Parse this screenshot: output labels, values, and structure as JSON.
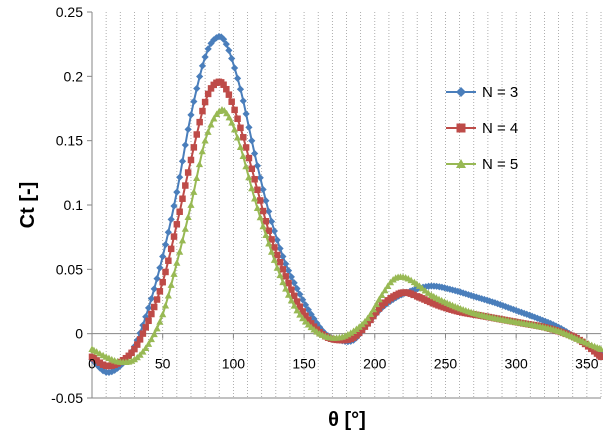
{
  "chart_data": {
    "type": "line",
    "title": "",
    "xlabel": "θ [°]",
    "ylabel": "Ct [-]",
    "xlim": [
      0,
      360
    ],
    "ylim": [
      -0.05,
      0.25
    ],
    "x_ticks": [
      0,
      50,
      100,
      150,
      200,
      250,
      300,
      350
    ],
    "y_ticks": [
      -0.05,
      0,
      0.05,
      0.1,
      0.15,
      0.2,
      0.25
    ],
    "y_tick_labels": [
      "-0.05",
      "0",
      "0.05",
      "0.1",
      "0.15",
      "0.2",
      "0.25"
    ],
    "grid": "vertical-dotted",
    "legend_position": "right",
    "series": [
      {
        "name": "N = 3",
        "color": "#4a7ebb",
        "marker": "diamond",
        "points": [
          [
            0,
            -0.02
          ],
          [
            10,
            -0.03
          ],
          [
            20,
            -0.025
          ],
          [
            30,
            -0.01
          ],
          [
            40,
            0.02
          ],
          [
            50,
            0.06
          ],
          [
            60,
            0.11
          ],
          [
            70,
            0.17
          ],
          [
            80,
            0.215
          ],
          [
            88,
            0.23
          ],
          [
            95,
            0.225
          ],
          [
            105,
            0.19
          ],
          [
            115,
            0.14
          ],
          [
            125,
            0.095
          ],
          [
            135,
            0.06
          ],
          [
            145,
            0.035
          ],
          [
            155,
            0.015
          ],
          [
            165,
            0.0
          ],
          [
            175,
            -0.005
          ],
          [
            185,
            -0.005
          ],
          [
            195,
            0.008
          ],
          [
            205,
            0.02
          ],
          [
            215,
            0.028
          ],
          [
            225,
            0.033
          ],
          [
            240,
            0.037
          ],
          [
            255,
            0.034
          ],
          [
            270,
            0.029
          ],
          [
            285,
            0.024
          ],
          [
            300,
            0.018
          ],
          [
            315,
            0.012
          ],
          [
            330,
            0.005
          ],
          [
            345,
            -0.005
          ],
          [
            360,
            -0.015
          ]
        ]
      },
      {
        "name": "N = 4",
        "color": "#be4b48",
        "marker": "square",
        "points": [
          [
            0,
            -0.018
          ],
          [
            10,
            -0.025
          ],
          [
            20,
            -0.022
          ],
          [
            30,
            -0.012
          ],
          [
            40,
            0.01
          ],
          [
            50,
            0.04
          ],
          [
            60,
            0.085
          ],
          [
            70,
            0.135
          ],
          [
            80,
            0.18
          ],
          [
            88,
            0.195
          ],
          [
            95,
            0.19
          ],
          [
            105,
            0.16
          ],
          [
            115,
            0.12
          ],
          [
            125,
            0.08
          ],
          [
            135,
            0.05
          ],
          [
            145,
            0.025
          ],
          [
            155,
            0.008
          ],
          [
            165,
            -0.002
          ],
          [
            175,
            -0.005
          ],
          [
            185,
            -0.003
          ],
          [
            195,
            0.008
          ],
          [
            205,
            0.022
          ],
          [
            215,
            0.03
          ],
          [
            222,
            0.032
          ],
          [
            230,
            0.029
          ],
          [
            245,
            0.022
          ],
          [
            260,
            0.017
          ],
          [
            275,
            0.014
          ],
          [
            290,
            0.011
          ],
          [
            305,
            0.008
          ],
          [
            320,
            0.005
          ],
          [
            335,
            0.0
          ],
          [
            345,
            -0.005
          ],
          [
            360,
            -0.018
          ]
        ]
      },
      {
        "name": "N = 5",
        "color": "#98b954",
        "marker": "triangle",
        "points": [
          [
            0,
            -0.012
          ],
          [
            10,
            -0.018
          ],
          [
            20,
            -0.022
          ],
          [
            30,
            -0.02
          ],
          [
            40,
            -0.008
          ],
          [
            50,
            0.015
          ],
          [
            60,
            0.055
          ],
          [
            70,
            0.1
          ],
          [
            80,
            0.15
          ],
          [
            90,
            0.173
          ],
          [
            97,
            0.168
          ],
          [
            105,
            0.145
          ],
          [
            115,
            0.105
          ],
          [
            125,
            0.07
          ],
          [
            135,
            0.04
          ],
          [
            145,
            0.018
          ],
          [
            155,
            0.005
          ],
          [
            165,
            -0.002
          ],
          [
            175,
            -0.003
          ],
          [
            185,
            0.002
          ],
          [
            195,
            0.012
          ],
          [
            205,
            0.03
          ],
          [
            213,
            0.042
          ],
          [
            220,
            0.044
          ],
          [
            228,
            0.04
          ],
          [
            240,
            0.03
          ],
          [
            255,
            0.022
          ],
          [
            270,
            0.016
          ],
          [
            285,
            0.012
          ],
          [
            300,
            0.009
          ],
          [
            315,
            0.006
          ],
          [
            330,
            0.002
          ],
          [
            345,
            -0.005
          ],
          [
            360,
            -0.012
          ]
        ]
      }
    ]
  }
}
